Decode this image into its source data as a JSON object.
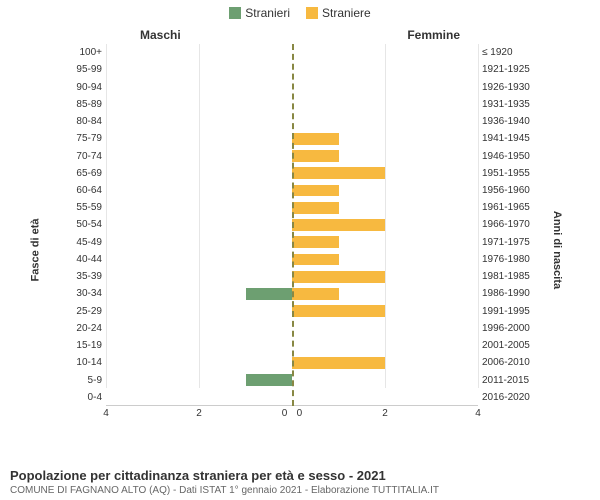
{
  "legend": {
    "male_label": "Stranieri",
    "female_label": "Straniere"
  },
  "colors": {
    "male": "#6d9f71",
    "female": "#f7b940",
    "center_line": "#888844",
    "grid": "#e6e6e6",
    "background": "#ffffff"
  },
  "headers": {
    "left": "Maschi",
    "right": "Femmine"
  },
  "axis_titles": {
    "left": "Fasce di età",
    "right": "Anni di nascita"
  },
  "chart": {
    "type": "population-pyramid",
    "x_max": 4,
    "x_ticks": [
      4,
      2,
      0,
      0,
      2,
      4
    ],
    "bar_fill_opacity": 1.0,
    "rows": [
      {
        "age": "100+",
        "birth": "≤ 1920",
        "male": 0,
        "female": 0
      },
      {
        "age": "95-99",
        "birth": "1921-1925",
        "male": 0,
        "female": 0
      },
      {
        "age": "90-94",
        "birth": "1926-1930",
        "male": 0,
        "female": 0
      },
      {
        "age": "85-89",
        "birth": "1931-1935",
        "male": 0,
        "female": 0
      },
      {
        "age": "80-84",
        "birth": "1936-1940",
        "male": 0,
        "female": 0
      },
      {
        "age": "75-79",
        "birth": "1941-1945",
        "male": 0,
        "female": 1
      },
      {
        "age": "70-74",
        "birth": "1946-1950",
        "male": 0,
        "female": 1
      },
      {
        "age": "65-69",
        "birth": "1951-1955",
        "male": 0,
        "female": 2
      },
      {
        "age": "60-64",
        "birth": "1956-1960",
        "male": 0,
        "female": 1
      },
      {
        "age": "55-59",
        "birth": "1961-1965",
        "male": 0,
        "female": 1
      },
      {
        "age": "50-54",
        "birth": "1966-1970",
        "male": 0,
        "female": 2
      },
      {
        "age": "45-49",
        "birth": "1971-1975",
        "male": 0,
        "female": 1
      },
      {
        "age": "40-44",
        "birth": "1976-1980",
        "male": 0,
        "female": 1
      },
      {
        "age": "35-39",
        "birth": "1981-1985",
        "male": 0,
        "female": 2
      },
      {
        "age": "30-34",
        "birth": "1986-1990",
        "male": 1,
        "female": 1
      },
      {
        "age": "25-29",
        "birth": "1991-1995",
        "male": 0,
        "female": 2
      },
      {
        "age": "20-24",
        "birth": "1996-2000",
        "male": 0,
        "female": 0
      },
      {
        "age": "15-19",
        "birth": "2001-2005",
        "male": 0,
        "female": 0
      },
      {
        "age": "10-14",
        "birth": "2006-2010",
        "male": 0,
        "female": 2
      },
      {
        "age": "5-9",
        "birth": "2011-2015",
        "male": 1,
        "female": 0
      },
      {
        "age": "0-4",
        "birth": "2016-2020",
        "male": 0,
        "female": 0
      }
    ]
  },
  "footer": {
    "title": "Popolazione per cittadinanza straniera per età e sesso - 2021",
    "subtitle": "COMUNE DI FAGNANO ALTO (AQ) - Dati ISTAT 1° gennaio 2021 - Elaborazione TUTTITALIA.IT"
  }
}
